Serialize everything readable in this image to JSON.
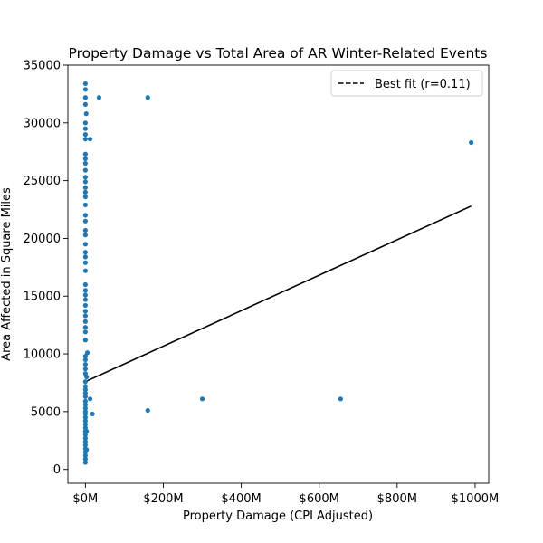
{
  "chart_data": {
    "type": "scatter",
    "title": "Property Damage vs Total Area of AR Winter-Related Events",
    "xlabel": "Property Damage (CPI Adjusted)",
    "ylabel": "Area Affected in Square Miles",
    "xlim": [
      -45,
      1035
    ],
    "ylim": [
      -1200,
      35000
    ],
    "x_ticks": [
      0,
      200,
      400,
      600,
      800,
      1000
    ],
    "x_tick_labels": [
      "$0M",
      "$200M",
      "$400M",
      "$600M",
      "$800M",
      "$1000M"
    ],
    "y_ticks": [
      0,
      5000,
      10000,
      15000,
      20000,
      25000,
      30000,
      35000
    ],
    "y_tick_labels": [
      "0",
      "5000",
      "10000",
      "15000",
      "20000",
      "25000",
      "30000",
      "35000"
    ],
    "grid": false,
    "legend_position": "top-right",
    "colors": {
      "points": "#1f77b4",
      "fit_line": "#000000"
    },
    "series": [
      {
        "name": "",
        "kind": "scatter",
        "points": [
          [
            0,
            33400
          ],
          [
            0,
            32900
          ],
          [
            0,
            32200
          ],
          [
            35,
            32200
          ],
          [
            160,
            32200
          ],
          [
            0,
            31600
          ],
          [
            2,
            30800
          ],
          [
            0,
            30000
          ],
          [
            0,
            29500
          ],
          [
            0,
            29000
          ],
          [
            0,
            28600
          ],
          [
            12,
            28600
          ],
          [
            990,
            28300
          ],
          [
            0,
            27300
          ],
          [
            0,
            26900
          ],
          [
            0,
            26500
          ],
          [
            0,
            25900
          ],
          [
            0,
            25300
          ],
          [
            0,
            24900
          ],
          [
            0,
            24400
          ],
          [
            0,
            24000
          ],
          [
            0,
            23600
          ],
          [
            0,
            22900
          ],
          [
            0,
            22000
          ],
          [
            0,
            21500
          ],
          [
            0,
            20700
          ],
          [
            0,
            20300
          ],
          [
            0,
            19500
          ],
          [
            0,
            18800
          ],
          [
            0,
            18400
          ],
          [
            0,
            17900
          ],
          [
            0,
            17200
          ],
          [
            0,
            16000
          ],
          [
            0,
            15500
          ],
          [
            0,
            15100
          ],
          [
            0,
            14700
          ],
          [
            0,
            14200
          ],
          [
            0,
            13700
          ],
          [
            0,
            13300
          ],
          [
            0,
            12800
          ],
          [
            0,
            12300
          ],
          [
            0,
            11900
          ],
          [
            0,
            11200
          ],
          [
            5,
            10100
          ],
          [
            0,
            9800
          ],
          [
            0,
            9500
          ],
          [
            0,
            9100
          ],
          [
            0,
            8700
          ],
          [
            0,
            8300
          ],
          [
            3,
            8000
          ],
          [
            0,
            7600
          ],
          [
            0,
            7200
          ],
          [
            0,
            6900
          ],
          [
            0,
            6600
          ],
          [
            0,
            6300
          ],
          [
            12,
            6100
          ],
          [
            300,
            6100
          ],
          [
            655,
            6100
          ],
          [
            0,
            5900
          ],
          [
            0,
            5600
          ],
          [
            0,
            5300
          ],
          [
            0,
            5000
          ],
          [
            160,
            5100
          ],
          [
            0,
            4800
          ],
          [
            18,
            4800
          ],
          [
            0,
            4500
          ],
          [
            0,
            4200
          ],
          [
            0,
            3900
          ],
          [
            0,
            3600
          ],
          [
            0,
            3300
          ],
          [
            3,
            3300
          ],
          [
            0,
            3000
          ],
          [
            0,
            2700
          ],
          [
            0,
            2400
          ],
          [
            0,
            2100
          ],
          [
            0,
            1800
          ],
          [
            0,
            1500
          ],
          [
            3,
            1700
          ],
          [
            0,
            1200
          ],
          [
            0,
            900
          ],
          [
            0,
            600
          ]
        ]
      },
      {
        "name": "Best fit (r=0.11)",
        "kind": "line",
        "points": [
          [
            0,
            7600
          ],
          [
            990,
            22800
          ]
        ]
      }
    ]
  }
}
